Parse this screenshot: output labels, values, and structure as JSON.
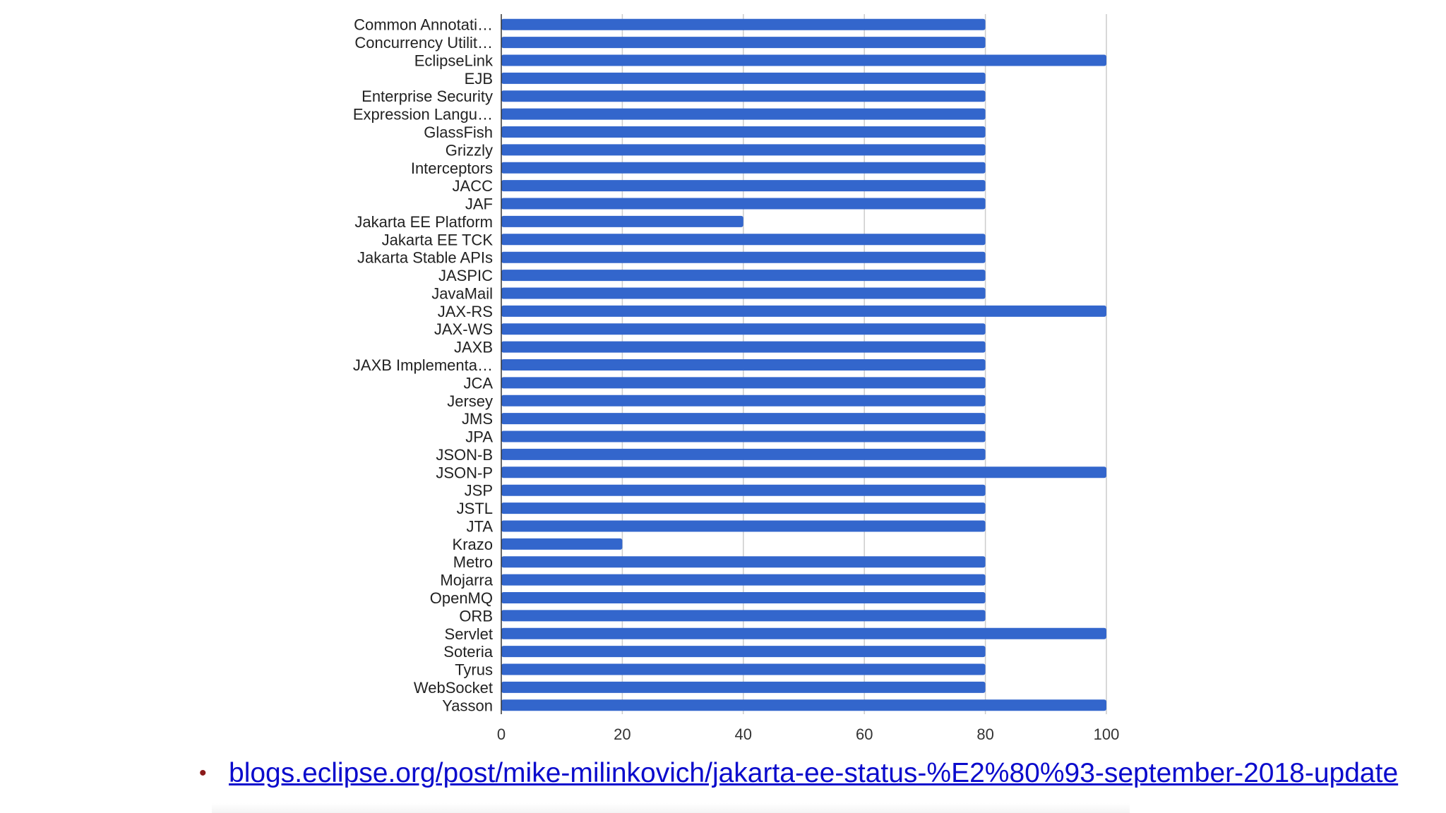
{
  "chart_data": {
    "type": "bar",
    "orientation": "horizontal",
    "categories": [
      "Common Annotati…",
      "Concurrency Utilit…",
      "EclipseLink",
      "EJB",
      "Enterprise Security",
      "Expression Langu…",
      "GlassFish",
      "Grizzly",
      "Interceptors",
      "JACC",
      "JAF",
      "Jakarta EE Platform",
      "Jakarta EE TCK",
      "Jakarta Stable APIs",
      "JASPIC",
      "JavaMail",
      "JAX-RS",
      "JAX-WS",
      "JAXB",
      "JAXB Implementa…",
      "JCA",
      "Jersey",
      "JMS",
      "JPA",
      "JSON-B",
      "JSON-P",
      "JSP",
      "JSTL",
      "JTA",
      "Krazo",
      "Metro",
      "Mojarra",
      "OpenMQ",
      "ORB",
      "Servlet",
      "Soteria",
      "Tyrus",
      "WebSocket",
      "Yasson"
    ],
    "values": [
      80,
      80,
      100,
      80,
      80,
      80,
      80,
      80,
      80,
      80,
      80,
      40,
      80,
      80,
      80,
      80,
      100,
      80,
      80,
      80,
      80,
      80,
      80,
      80,
      80,
      100,
      80,
      80,
      80,
      20,
      80,
      80,
      80,
      80,
      100,
      80,
      80,
      80,
      100
    ],
    "xlim": [
      0,
      100
    ],
    "ticks": [
      "0",
      "20",
      "40",
      "60",
      "80",
      "100"
    ],
    "grid": true,
    "bar_color": "#3366cc",
    "grid_color": "#cccccc"
  },
  "footer": {
    "bullet": "•",
    "link_text": "blogs.eclipse.org/post/mike-milinkovich/jakarta-ee-status-%E2%80%93-september-2018-update"
  }
}
